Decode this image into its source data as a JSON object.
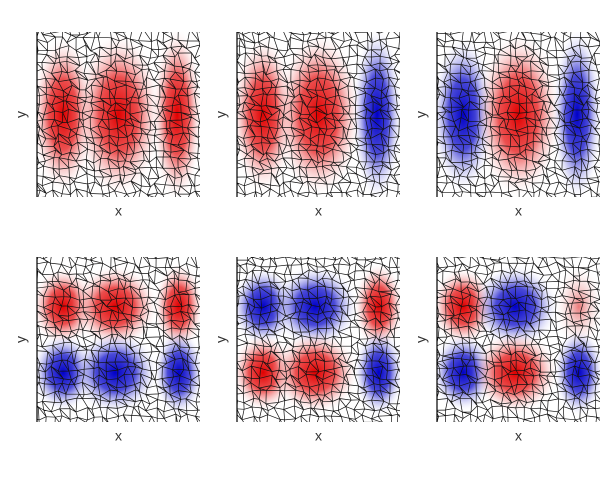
{
  "panels": [
    {
      "xlabel": "x",
      "ylabel": "y"
    },
    {
      "xlabel": "x",
      "ylabel": "y"
    },
    {
      "xlabel": "x",
      "ylabel": "y"
    },
    {
      "xlabel": "x",
      "ylabel": "y"
    },
    {
      "xlabel": "x",
      "ylabel": "y"
    },
    {
      "xlabel": "x",
      "ylabel": "y"
    }
  ]
}
